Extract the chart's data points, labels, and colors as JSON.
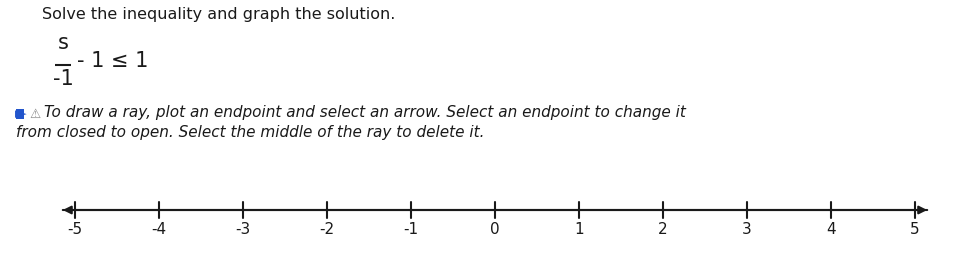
{
  "title_text": "Solve the inequality and graph the solution.",
  "numerator": "s",
  "denominator": "-1",
  "inequality_suffix": "- 1 ≤ 1",
  "instruction_line1": "To draw a ray, plot an endpoint and select an arrow. Select an endpoint to change it",
  "instruction_line2": "from closed to open. Select the middle of the ray to delete it.",
  "tick_labels": [
    "-5",
    "-4",
    "-3",
    "-2",
    "-1",
    "0",
    "1",
    "2",
    "3",
    "4",
    "5"
  ],
  "tick_values": [
    -5,
    -4,
    -3,
    -2,
    -1,
    0,
    1,
    2,
    3,
    4,
    5
  ],
  "background_color": "#ffffff",
  "text_color": "#1a1a1a",
  "line_color": "#1a1a1a",
  "title_fontsize": 11.5,
  "inequality_fontsize": 15,
  "instruction_fontsize": 11,
  "tick_fontsize": 11
}
